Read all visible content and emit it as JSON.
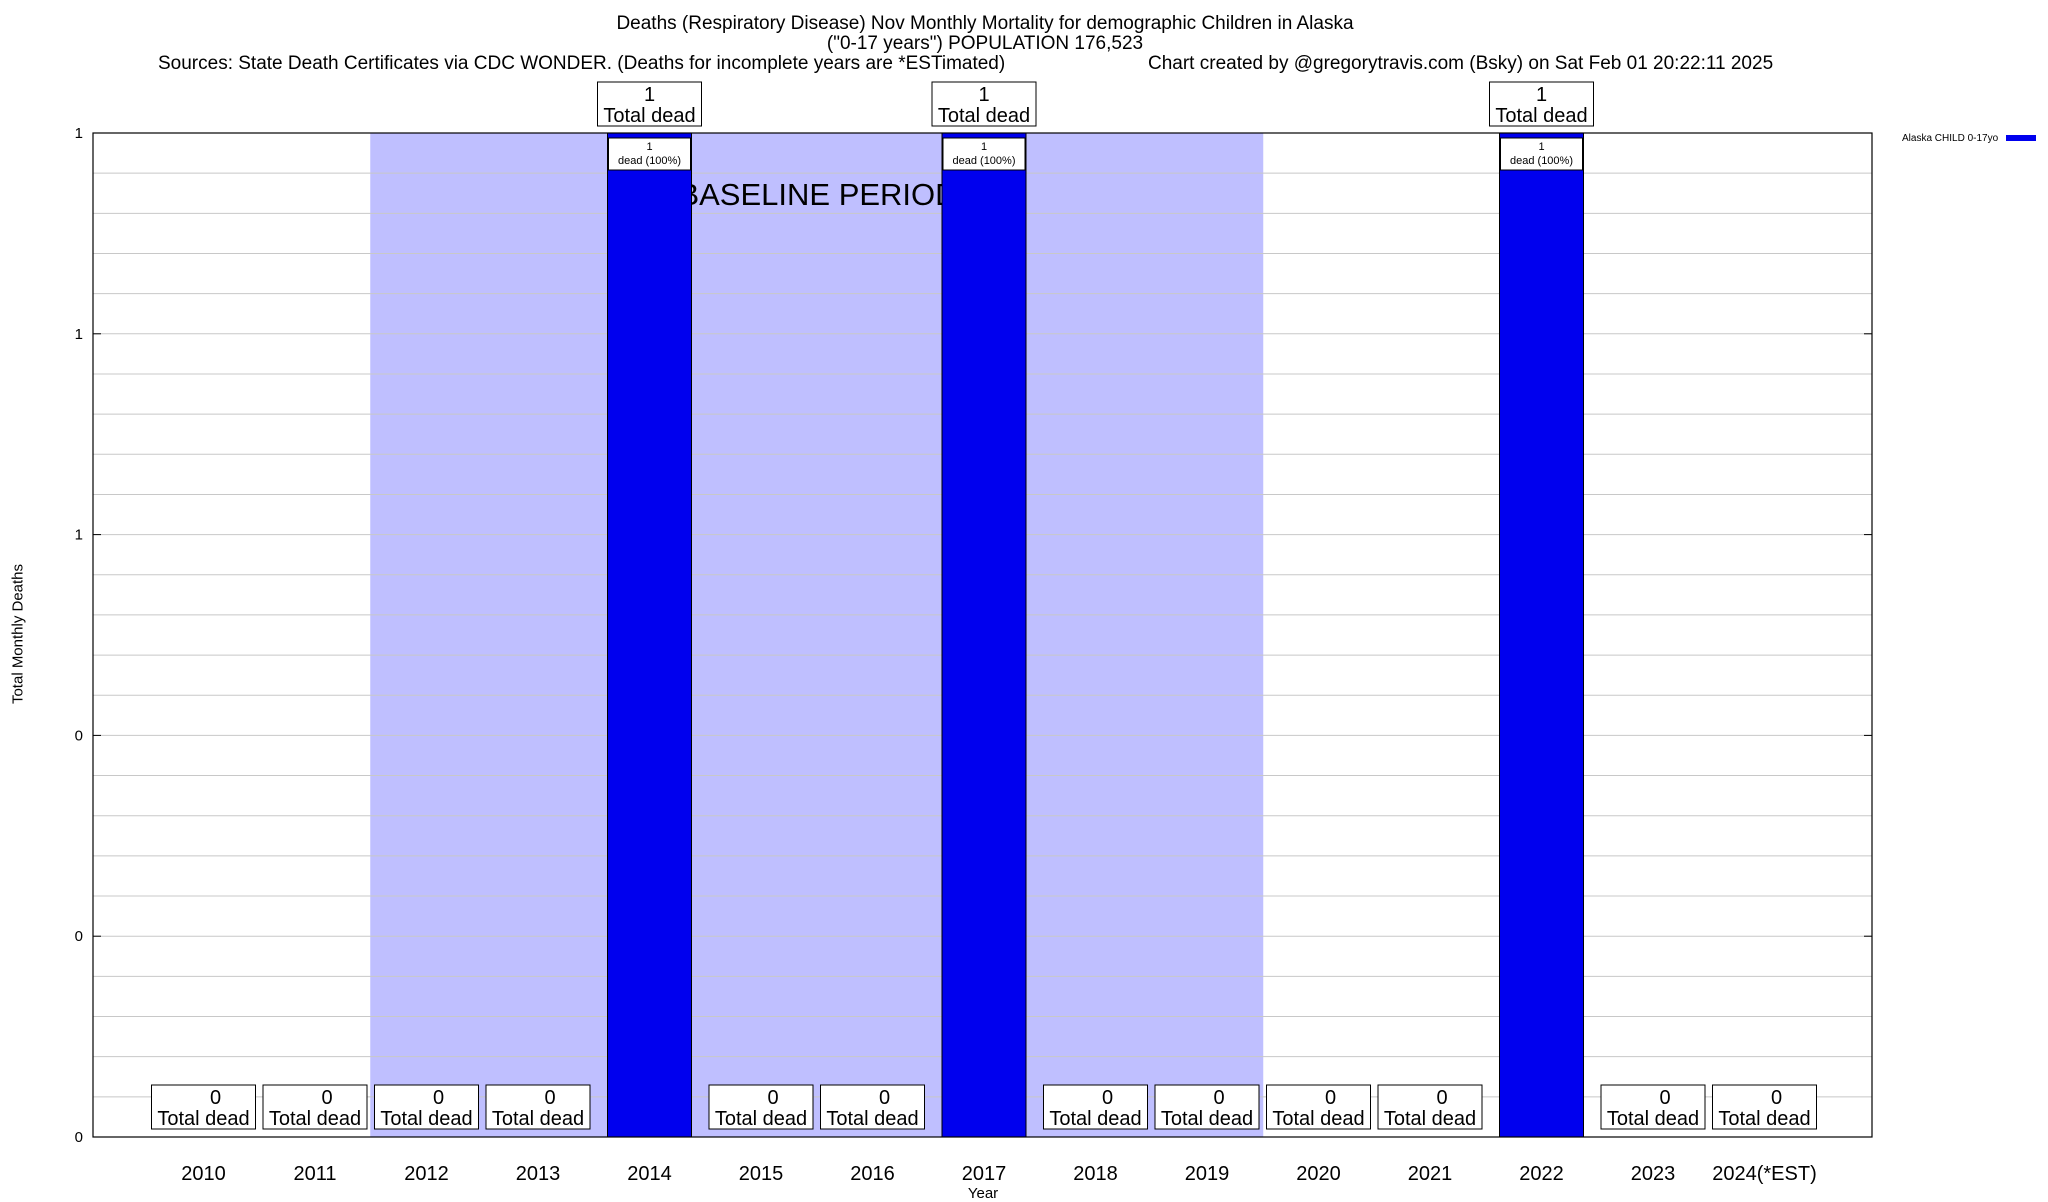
{
  "chart_data": {
    "type": "bar",
    "title": "Deaths (Respiratory Disease) Nov Monthly Mortality for demographic Children in Alaska",
    "subtitle": "(\"0-17 years\") POPULATION 176,523",
    "sources": "Sources: State Death Certificates via CDC WONDER. (Deaths for incomplete years are *ESTimated)",
    "credit": "Chart created by @gregorytravis.com (Bsky) on Sat Feb 01 20:22:11 2025",
    "xlabel": "Year",
    "ylabel": "Total Monthly Deaths",
    "categories": [
      "2010",
      "2011",
      "2012",
      "2013",
      "2014",
      "2015",
      "2016",
      "2017",
      "2018",
      "2019",
      "2020",
      "2021",
      "2022",
      "2023",
      "2024(*EST)"
    ],
    "series": [
      {
        "name": "Alaska CHILD 0-17yo",
        "color": "#0000ee",
        "values": [
          0,
          0,
          0,
          0,
          1,
          0,
          0,
          1,
          0,
          0,
          0,
          0,
          1,
          0,
          0
        ]
      }
    ],
    "ylim": [
      0,
      1
    ],
    "ytick_labels": [
      "0",
      "0",
      "0",
      "1",
      "1",
      "1"
    ],
    "baseline_period": {
      "label": "BASELINE PERIOD",
      "start": "2012",
      "end": "2019",
      "color": "#bfbfff"
    },
    "total_label_suffix": "Total dead",
    "bar_label_text": "dead (100%)",
    "grid": true,
    "legend_position": "top-right"
  }
}
